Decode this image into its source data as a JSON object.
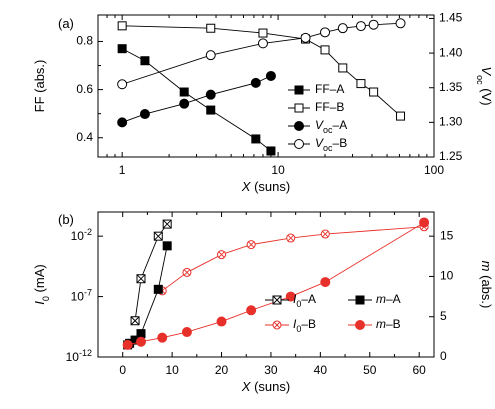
{
  "chart_data": [
    {
      "type": "line",
      "panel_label": "(a)",
      "xscale": "log",
      "xlim": [
        0.7,
        100
      ],
      "xticks": [
        "1",
        "10",
        "100"
      ],
      "xlabel": {
        "main": "X",
        "unit": "(suns)"
      },
      "ylabel_left": "FF  (abs.)",
      "ylim_left": [
        0.32,
        0.91
      ],
      "yticks_left": [
        "0.4",
        "0.6",
        "0.8"
      ],
      "ylabel_right": {
        "main": "V",
        "sub": "oc",
        "unit": "(V)"
      },
      "ylim_right": [
        1.25,
        1.455
      ],
      "yticks_right": [
        "1.25",
        "1.30",
        "1.35",
        "1.40",
        "1.45"
      ],
      "legend_position": "center-right",
      "series": [
        {
          "name": "FF-A",
          "legend": {
            "main": "FF",
            "suffix": "–A"
          },
          "axis": "left",
          "marker": "square",
          "filled": true,
          "x": [
            1,
            1.4,
            2.5,
            3.7,
            7.2,
            9
          ],
          "y": [
            0.77,
            0.72,
            0.59,
            0.515,
            0.395,
            0.345
          ]
        },
        {
          "name": "FF-B",
          "legend": {
            "main": "FF",
            "suffix": "–B"
          },
          "axis": "left",
          "marker": "square",
          "filled": false,
          "x": [
            1,
            3.7,
            8,
            15,
            20,
            26,
            34,
            41,
            61
          ],
          "y": [
            0.865,
            0.855,
            0.835,
            0.81,
            0.765,
            0.69,
            0.625,
            0.59,
            0.49
          ]
        },
        {
          "name": "Voc-A",
          "legend": {
            "main": "V",
            "sub": "oc",
            "suffix": "–A"
          },
          "axis": "right",
          "marker": "circle",
          "filled": true,
          "x": [
            1,
            1.4,
            2.5,
            3.7,
            7.2,
            9
          ],
          "y": [
            1.3,
            1.312,
            1.327,
            1.34,
            1.357,
            1.367
          ]
        },
        {
          "name": "Voc-B",
          "legend": {
            "main": "V",
            "sub": "oc",
            "suffix": "–B"
          },
          "axis": "right",
          "marker": "circle",
          "filled": false,
          "x": [
            1,
            3.7,
            8,
            15,
            20,
            26,
            34,
            41,
            61
          ],
          "y": [
            1.355,
            1.397,
            1.414,
            1.422,
            1.43,
            1.436,
            1.439,
            1.441,
            1.443
          ]
        }
      ]
    },
    {
      "type": "line",
      "panel_label": "(b)",
      "xscale": "linear",
      "xlim": [
        -5,
        63
      ],
      "xticks": [
        "0",
        "10",
        "20",
        "30",
        "40",
        "50",
        "60"
      ],
      "xlabel": {
        "main": "X",
        "unit": "(suns)"
      },
      "ylabel_left": {
        "main": "I",
        "sub": "0",
        "unit": "(mA)"
      },
      "yscale_left": "log",
      "ylim_left": [
        "1e-12",
        "1"
      ],
      "yticks_left": [
        {
          "base": "10",
          "exp": "-12"
        },
        {
          "base": "10",
          "exp": "-7"
        },
        {
          "base": "10",
          "exp": "-2"
        }
      ],
      "ylabel_right": {
        "main": "m",
        "unit": "(abs.)"
      },
      "ylim_right": [
        0,
        18
      ],
      "yticks_right": [
        "0",
        "5",
        "10",
        "15"
      ],
      "legend_position": "center-right",
      "series": [
        {
          "name": "I0-A",
          "legend": {
            "main": "I",
            "sub": "0",
            "suffix": "–A"
          },
          "axis": "left",
          "marker": "crossed-square",
          "color": "#000000",
          "x": [
            2.5,
            3.7,
            7.2,
            9
          ],
          "y": [
            "1e-9",
            "3e-6",
            "0.01",
            "0.1"
          ]
        },
        {
          "name": "I0-B",
          "legend": {
            "main": "I",
            "sub": "0",
            "suffix": "–B"
          },
          "axis": "left",
          "marker": "crossed-circle",
          "color": "#e8302a",
          "x": [
            8,
            13,
            20,
            26,
            34,
            41,
            61
          ],
          "y": [
            "3e-7",
            "1e-5",
            "0.0003",
            "0.002",
            "0.007",
            "0.015",
            "0.06"
          ]
        },
        {
          "name": "m-A",
          "legend": {
            "main": "m",
            "suffix": "–A"
          },
          "axis": "right",
          "marker": "square",
          "filled": true,
          "color": "#000000",
          "x": [
            1,
            1.4,
            2.5,
            3.7,
            7.2,
            9
          ],
          "y": [
            1.5,
            1.7,
            2.1,
            2.9,
            8.4,
            13.8
          ]
        },
        {
          "name": "m-B",
          "legend": {
            "main": "m",
            "suffix": "–B"
          },
          "axis": "right",
          "marker": "circle",
          "filled": true,
          "color": "#e8302a",
          "x": [
            1,
            3.7,
            8,
            13,
            20,
            26,
            34,
            41,
            61
          ],
          "y": [
            1.5,
            1.9,
            2.4,
            3.1,
            4.4,
            5.8,
            7.5,
            9.3,
            16.7
          ]
        }
      ]
    }
  ]
}
